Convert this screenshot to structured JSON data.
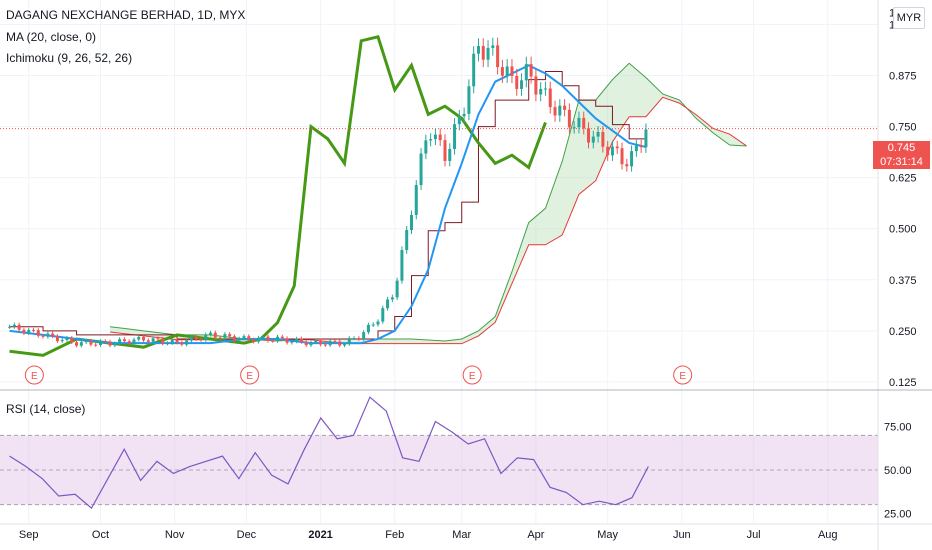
{
  "legend": {
    "title": "DAGANG NEXCHANGE BERHAD, 1D, MYX",
    "ma": "MA (20, close, 0)",
    "ichimoku": "Ichimoku (9, 26, 52, 26)",
    "rsi": "RSI (14, close)"
  },
  "currency": "MYR",
  "price_axis_extra": "1",
  "last_price": "0.745",
  "countdown": "07:31:14",
  "earnings_marker": "E",
  "colors": {
    "up": "#26a69a",
    "down": "#ef5350",
    "ma": "#2196f3",
    "conversion": "#2196f3",
    "base": "#801922",
    "lagging": "#459915",
    "cloud_up": "#a5d6a7",
    "cloud_down": "#ef9a9a",
    "rsi": "#7e57c2",
    "rsi_band": "#e1bee7"
  },
  "chart_data": [
    {
      "type": "candlestick",
      "title": "DAGANG NEXCHANGE BERHAD, 1D, MYX",
      "y_ticks": [
        "1.000",
        "0.875",
        "0.750",
        "0.625",
        "0.500",
        "0.375",
        "0.250",
        "0.125"
      ],
      "x_ticks": [
        "Sep",
        "Oct",
        "Nov",
        "Dec",
        "2021",
        "Feb",
        "Mar",
        "Apr",
        "May",
        "Jun",
        "Jul",
        "Aug"
      ],
      "ylim": [
        0.11,
        1.06
      ],
      "scale": "linear",
      "x": [
        "2020-08-24",
        "2020-09-07",
        "2020-09-21",
        "2020-10-05",
        "2020-10-19",
        "2020-11-02",
        "2020-11-16",
        "2020-11-30",
        "2020-12-14",
        "2020-12-28",
        "2021-01-11",
        "2021-01-18",
        "2021-01-25",
        "2021-02-01",
        "2021-02-08",
        "2021-02-15",
        "2021-02-22",
        "2021-03-01",
        "2021-03-08",
        "2021-03-15",
        "2021-03-22",
        "2021-03-29",
        "2021-04-05",
        "2021-04-12",
        "2021-04-19",
        "2021-04-26",
        "2021-05-03",
        "2021-05-10",
        "2021-05-17"
      ],
      "close": [
        0.26,
        0.24,
        0.22,
        0.22,
        0.23,
        0.22,
        0.24,
        0.23,
        0.23,
        0.22,
        0.22,
        0.24,
        0.28,
        0.35,
        0.55,
        0.75,
        0.68,
        0.78,
        0.95,
        0.92,
        0.86,
        0.88,
        0.82,
        0.78,
        0.75,
        0.72,
        0.69,
        0.66,
        0.745
      ],
      "ma20": [
        0.25,
        0.24,
        0.23,
        0.22,
        0.22,
        0.22,
        0.22,
        0.23,
        0.23,
        0.22,
        0.22,
        0.22,
        0.23,
        0.25,
        0.31,
        0.4,
        0.55,
        0.66,
        0.78,
        0.86,
        0.88,
        0.9,
        0.88,
        0.85,
        0.81,
        0.77,
        0.74,
        0.71,
        0.7
      ],
      "lagging_span": {
        "x": [
          "2020-08-24",
          "2020-09-07",
          "2020-09-21",
          "2020-10-05",
          "2020-10-19",
          "2020-11-02",
          "2020-11-16",
          "2020-11-30",
          "2020-12-07",
          "2020-12-14",
          "2020-12-21",
          "2020-12-28",
          "2021-01-04",
          "2021-01-11",
          "2021-01-18",
          "2021-01-25",
          "2021-02-01",
          "2021-02-08",
          "2021-02-15",
          "2021-02-22",
          "2021-03-01",
          "2021-03-08",
          "2021-03-15",
          "2021-03-22",
          "2021-03-29",
          "2021-04-05"
        ],
        "values": [
          0.2,
          0.19,
          0.23,
          0.22,
          0.21,
          0.24,
          0.23,
          0.22,
          0.23,
          0.27,
          0.36,
          0.75,
          0.72,
          0.66,
          0.96,
          0.97,
          0.84,
          0.9,
          0.78,
          0.8,
          0.77,
          0.71,
          0.66,
          0.68,
          0.65,
          0.76
        ]
      },
      "series": [
        {
          "name": "MA (20, close, 0)",
          "values": [
            0.25,
            0.24,
            0.23,
            0.22,
            0.22,
            0.22,
            0.22,
            0.23,
            0.23,
            0.22,
            0.22,
            0.22,
            0.23,
            0.25,
            0.31,
            0.4,
            0.55,
            0.66,
            0.78,
            0.86,
            0.88,
            0.9,
            0.88,
            0.85,
            0.81,
            0.77,
            0.74,
            0.71,
            0.7
          ]
        }
      ]
    },
    {
      "type": "line",
      "title": "RSI (14, close)",
      "y_ticks": [
        "75.00",
        "50.00",
        "25.00"
      ],
      "ylim": [
        20,
        95
      ],
      "band": [
        30,
        70
      ],
      "series": [
        {
          "name": "RSI (14, close)",
          "values": [
            58,
            52,
            45,
            35,
            36,
            28,
            45,
            62,
            44,
            55,
            48,
            52,
            55,
            58,
            45,
            60,
            47,
            42,
            62,
            80,
            68,
            70,
            92,
            84,
            57,
            55,
            78,
            72,
            65,
            68,
            48,
            57,
            56,
            40,
            37,
            30,
            32,
            30,
            34,
            52
          ]
        }
      ]
    }
  ]
}
